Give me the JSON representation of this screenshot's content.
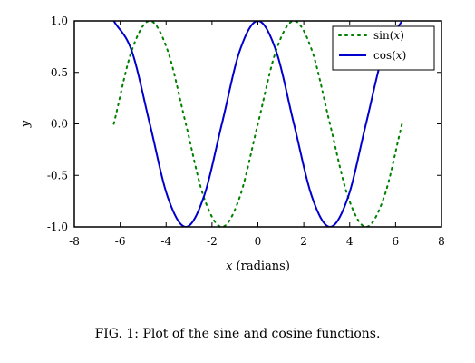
{
  "chart_data": {
    "type": "line",
    "xlabel_var": "x",
    "xlabel_unit": " (radians)",
    "ylabel": "y",
    "xlim": [
      -8,
      8
    ],
    "ylim": [
      -1.0,
      1.0
    ],
    "xticks": [
      -8,
      -6,
      -4,
      -2,
      0,
      2,
      4,
      6,
      8
    ],
    "yticks": [
      1.0,
      0.5,
      0.0,
      -0.5,
      -1.0
    ],
    "ytick_labels": [
      "1.0",
      "0.5",
      "0.0",
      "-0.5",
      "-1.0"
    ],
    "grid": false,
    "legend_position": "top-right",
    "series": [
      {
        "name": "sin(x)",
        "name_func": "sin(",
        "name_var": "x",
        "name_close": ")",
        "color": "#008000",
        "style": "dotted",
        "x": [
          -6.28,
          -5.5,
          -4.71,
          -3.93,
          -3.14,
          -2.36,
          -1.57,
          -0.79,
          0.0,
          0.79,
          1.57,
          2.36,
          3.14,
          3.93,
          4.71,
          5.5,
          6.28
        ],
        "y": [
          0.0,
          0.71,
          1.0,
          0.71,
          0.0,
          -0.71,
          -1.0,
          -0.71,
          0.0,
          0.71,
          1.0,
          0.71,
          0.0,
          -0.71,
          -1.0,
          -0.71,
          0.0
        ]
      },
      {
        "name": "cos(x)",
        "name_func": "cos(",
        "name_var": "x",
        "name_close": ")",
        "color": "#0000cc",
        "style": "solid",
        "x": [
          -6.28,
          -5.5,
          -4.71,
          -3.93,
          -3.14,
          -2.36,
          -1.57,
          -0.79,
          0.0,
          0.79,
          1.57,
          2.36,
          3.14,
          3.93,
          4.71,
          5.5,
          6.28
        ],
        "y": [
          1.0,
          0.71,
          0.0,
          -0.71,
          -1.0,
          -0.71,
          0.0,
          0.71,
          1.0,
          0.71,
          0.0,
          -0.71,
          -1.0,
          -0.71,
          0.0,
          0.71,
          1.0
        ]
      }
    ]
  },
  "caption": "FIG. 1: Plot of the sine and cosine functions."
}
